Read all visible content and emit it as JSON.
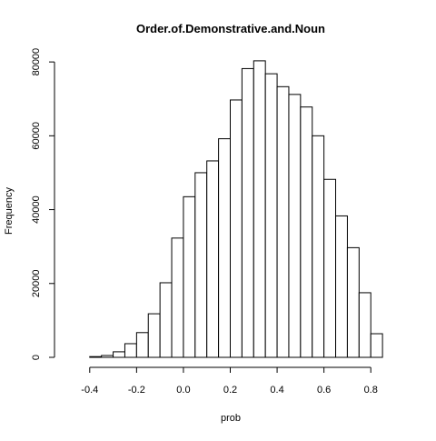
{
  "chart_data": {
    "type": "bar",
    "title": "Order.of.Demonstrative.and.Noun",
    "xlabel": "prob",
    "ylabel": "Frequency",
    "xlim": [
      -0.5,
      0.9
    ],
    "ylim": [
      0,
      82000
    ],
    "x_ticks": [
      -0.4,
      -0.2,
      0.0,
      0.2,
      0.4,
      0.6,
      0.8
    ],
    "x_tick_labels": [
      "-0.4",
      "-0.2",
      "0.0",
      "0.2",
      "0.4",
      "0.6",
      "0.8"
    ],
    "y_ticks": [
      0,
      20000,
      40000,
      60000,
      80000
    ],
    "y_tick_labels": [
      "0",
      "20000",
      "40000",
      "60000",
      "80000"
    ],
    "bin_edges": [
      -0.4,
      -0.35,
      -0.3,
      -0.25,
      -0.2,
      -0.15,
      -0.1,
      -0.05,
      0.0,
      0.05,
      0.1,
      0.15,
      0.2,
      0.25,
      0.3,
      0.35,
      0.4,
      0.45,
      0.5,
      0.55,
      0.6,
      0.65,
      0.7,
      0.75,
      0.8,
      0.85
    ],
    "values": [
      200,
      500,
      1500,
      3700,
      6700,
      11800,
      20200,
      32300,
      43500,
      50000,
      53200,
      59200,
      69700,
      78200,
      80300,
      76800,
      73300,
      71200,
      67800,
      60000,
      48200,
      38300,
      29700,
      17500,
      6400,
      800
    ],
    "bar_fill": "#ffffff",
    "bar_stroke": "#000000",
    "grid": false
  }
}
